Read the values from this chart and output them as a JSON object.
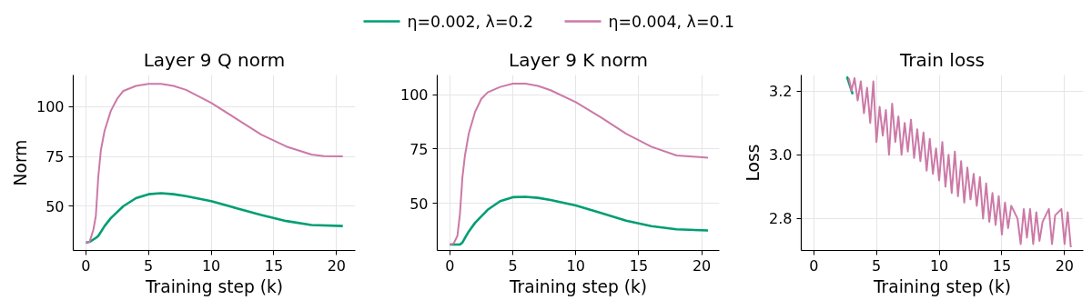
{
  "chart_data": [
    {
      "type": "line",
      "title": "Layer 9 Q norm",
      "xlabel": "Training step (k)",
      "ylabel": "Norm",
      "xlim": [
        -1.0,
        21.5
      ],
      "ylim": [
        27.7,
        116
      ],
      "xticks": [
        0,
        5,
        10,
        15,
        20
      ],
      "yticks": [
        50,
        75,
        100
      ],
      "grid": true,
      "line_style": "solid",
      "series": [
        {
          "color": "#009e73",
          "x": [
            0,
            0.3,
            0.8,
            1,
            1.5,
            2,
            3,
            4,
            5,
            6,
            7,
            8,
            10,
            12,
            14,
            16,
            18,
            20.5
          ],
          "values": [
            31.6,
            32,
            34,
            35,
            40,
            44,
            50,
            54,
            56,
            56.5,
            56,
            55,
            52.5,
            49,
            45.5,
            42.5,
            40.5,
            40
          ]
        },
        {
          "color": "#cc79a7",
          "x": [
            0,
            0.3,
            0.6,
            0.8,
            1.0,
            1.2,
            1.5,
            2,
            2.5,
            3,
            4,
            5,
            6,
            7,
            8,
            10,
            12,
            14,
            16,
            18,
            19,
            20.5
          ],
          "values": [
            31.6,
            32,
            38,
            45,
            65,
            78,
            88,
            98,
            104,
            108,
            110.5,
            111.5,
            111.5,
            110.5,
            108.5,
            102,
            94,
            86,
            80,
            76,
            75.2,
            75
          ]
        }
      ]
    },
    {
      "type": "line",
      "title": "Layer 9 K norm",
      "xlabel": "Training step (k)",
      "xlim": [
        -1.0,
        21.4
      ],
      "ylim": [
        28.3,
        109
      ],
      "xticks": [
        0,
        5,
        10,
        15,
        20
      ],
      "yticks": [
        50,
        75,
        100
      ],
      "grid": true,
      "legend": "top",
      "line_style": "solid",
      "series": [
        {
          "name": "η=0.002, λ=0.2",
          "color": "#009e73",
          "x": [
            0,
            0.8,
            1,
            1.5,
            2,
            3,
            4,
            5,
            6,
            7,
            8,
            10,
            12,
            14,
            16,
            18,
            20.5
          ],
          "values": [
            31,
            31,
            32,
            37,
            41,
            47,
            51,
            52.8,
            53,
            52.5,
            51.5,
            49,
            45.5,
            42,
            39.5,
            38,
            37.5
          ]
        },
        {
          "name": "η=0.004, λ=0.1",
          "color": "#cc79a7",
          "x": [
            0,
            0.3,
            0.6,
            0.8,
            1,
            1.2,
            1.5,
            2,
            2.5,
            3,
            4,
            5,
            6,
            7,
            8,
            10,
            12,
            14,
            16,
            18,
            20.5
          ],
          "values": [
            31,
            31.5,
            35,
            45,
            62,
            72,
            82,
            92,
            98,
            101,
            103.5,
            105,
            105,
            104,
            102,
            96.5,
            89.5,
            82,
            76,
            72,
            71
          ]
        }
      ]
    },
    {
      "type": "line",
      "title": "Train loss",
      "xlabel": "Training step (k)",
      "ylabel": "Loss",
      "xlim": [
        -1.0,
        21.5
      ],
      "ylim": [
        2.7,
        3.25
      ],
      "xticks": [
        0,
        5,
        10,
        15,
        20
      ],
      "yticks": [
        {
          "value": 2.8,
          "label": "2.8"
        },
        {
          "value": 3.0,
          "label": "3.0"
        },
        {
          "value": 3.2,
          "label": "3.2"
        }
      ],
      "grid": true,
      "line_style": "solid",
      "series": [
        {
          "color": "#009e73",
          "x": [
            2.65,
            3.1
          ],
          "values": [
            3.245,
            3.19
          ]
        },
        {
          "color": "#cc79a7",
          "x": [
            2.8,
            3.0,
            3.25,
            3.5,
            3.75,
            4.0,
            4.25,
            4.5,
            4.75,
            5.0,
            5.25,
            5.5,
            5.75,
            6.0,
            6.25,
            6.5,
            6.75,
            7.0,
            7.25,
            7.5,
            7.75,
            8.0,
            8.25,
            8.5,
            8.75,
            9.0,
            9.25,
            9.5,
            9.75,
            10.0,
            10.25,
            10.5,
            10.75,
            11.0,
            11.25,
            11.5,
            11.75,
            12.0,
            12.25,
            12.5,
            12.75,
            13.0,
            13.25,
            13.5,
            13.75,
            14.0,
            14.25,
            14.5,
            14.75,
            15.0,
            15.25,
            15.5,
            15.75,
            16.25,
            16.5,
            16.75,
            17.0,
            17.25,
            17.5,
            17.75,
            18.0,
            18.25,
            18.75,
            19.0,
            19.25,
            19.75,
            20.0,
            20.25,
            20.5
          ],
          "values": [
            3.24,
            3.2,
            3.24,
            3.17,
            3.23,
            3.13,
            3.21,
            3.1,
            3.23,
            3.04,
            3.15,
            3.06,
            3.14,
            3.0,
            3.16,
            3.04,
            3.12,
            3.0,
            3.1,
            3.01,
            3.11,
            2.99,
            3.08,
            2.98,
            3.07,
            2.95,
            3.05,
            2.94,
            3.02,
            2.92,
            3.04,
            2.9,
            3.0,
            2.88,
            3.01,
            2.87,
            2.98,
            2.85,
            2.96,
            2.86,
            2.94,
            2.84,
            2.93,
            2.8,
            2.91,
            2.79,
            2.88,
            2.78,
            2.87,
            2.75,
            2.85,
            2.77,
            2.84,
            2.8,
            2.72,
            2.83,
            2.74,
            2.83,
            2.72,
            2.82,
            2.73,
            2.79,
            2.83,
            2.72,
            2.81,
            2.83,
            2.72,
            2.82,
            2.71
          ]
        }
      ]
    }
  ]
}
